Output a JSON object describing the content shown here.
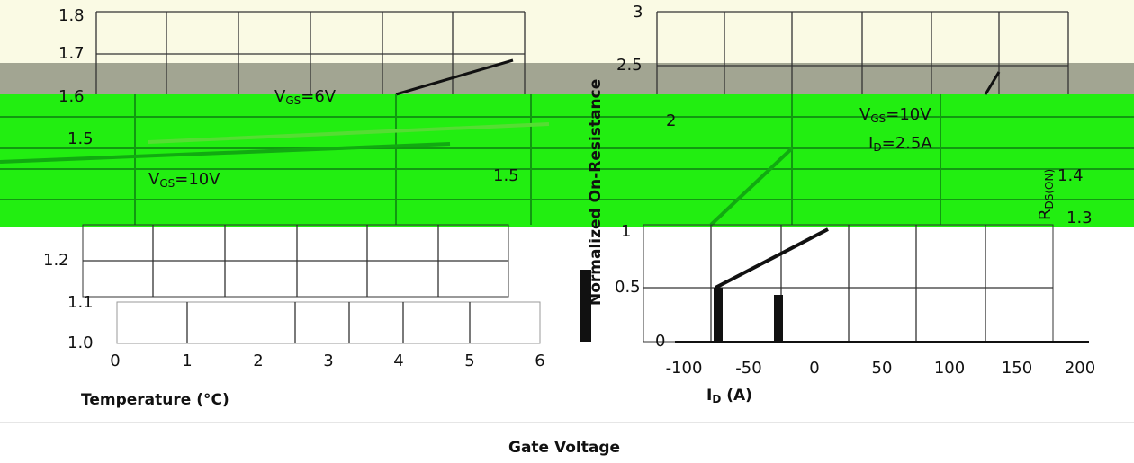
{
  "left_top": {
    "yticks": [
      "1.8",
      "1.7",
      "1.6",
      "1.5"
    ],
    "vgs6": {
      "v": "V",
      "sub": "GS",
      "rest": "=6V"
    },
    "vgs10": {
      "v": "V",
      "sub": "GS",
      "rest": "=10V"
    }
  },
  "left_bottom": {
    "yticks": [
      "1.2",
      "1.1",
      "1.0"
    ],
    "xticks": [
      "0",
      "1",
      "2",
      "3",
      "4",
      "5",
      "6"
    ],
    "xlabel": "Temperature (°C)"
  },
  "right": {
    "yticks": [
      "3",
      "2.5",
      "2",
      "1.5",
      "1",
      "0.5",
      "0"
    ],
    "vgs": {
      "v": "V",
      "sub": "GS",
      "rest": "=10V"
    },
    "id": {
      "v": "I",
      "sub": "D",
      "rest": "=2.5A"
    },
    "rds_ticks": [
      "1.4",
      "1.3"
    ],
    "rds_label": {
      "v": "R",
      "sub": "DS(ON)"
    },
    "xticks": [
      "-100",
      "-50",
      "0",
      "50",
      "100",
      "150",
      "200"
    ],
    "xlabel": {
      "v": "I",
      "sub": "D",
      "rest": " (A)"
    },
    "ylabel": "Normalized On-Resistance"
  },
  "footer": {
    "caption": "Gate Voltage"
  }
}
